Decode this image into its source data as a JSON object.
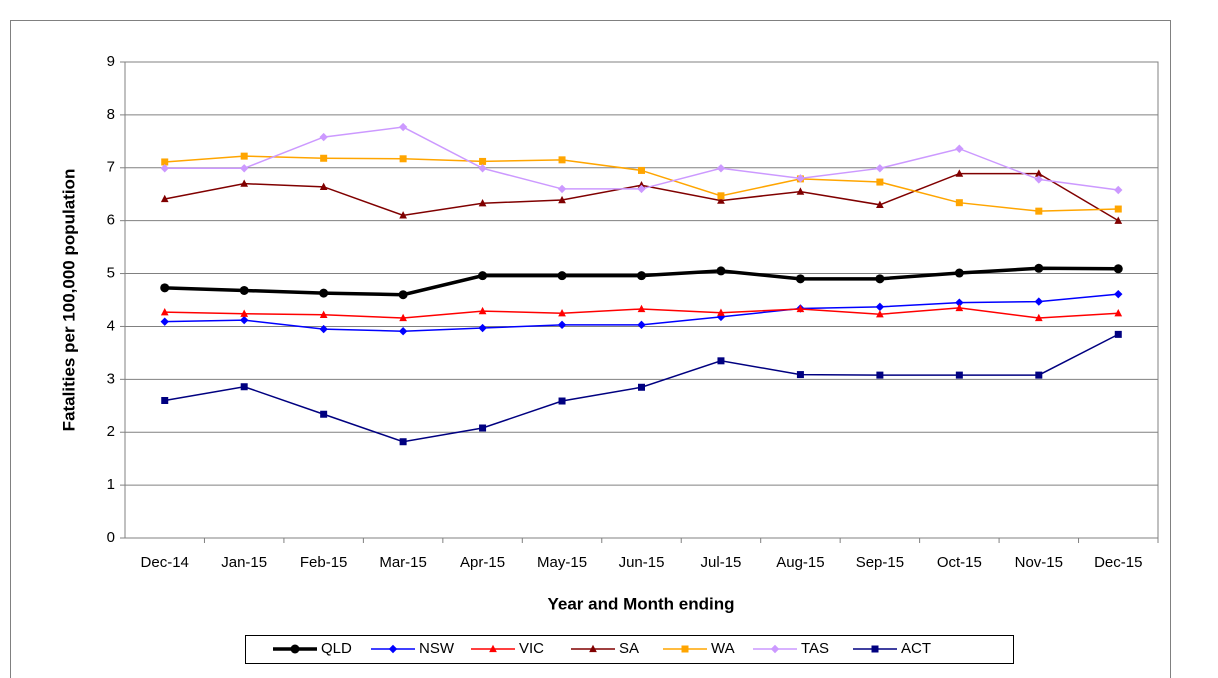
{
  "chart_data": {
    "type": "line",
    "xlabel": "Year and Month ending",
    "ylabel": "Fatalities per 100,000 population",
    "categories": [
      "Dec-14",
      "Jan-15",
      "Feb-15",
      "Mar-15",
      "Apr-15",
      "May-15",
      "Jun-15",
      "Jul-15",
      "Aug-15",
      "Sep-15",
      "Oct-15",
      "Nov-15",
      "Dec-15"
    ],
    "ylim": [
      0,
      9
    ],
    "yticks": [
      0,
      1,
      2,
      3,
      4,
      5,
      6,
      7,
      8,
      9
    ],
    "grid": true,
    "legend": "bottom",
    "series": [
      {
        "name": "QLD",
        "color": "#000000",
        "marker": "circle",
        "values": [
          4.73,
          4.68,
          4.63,
          4.6,
          4.96,
          4.96,
          4.96,
          5.05,
          4.9,
          4.9,
          5.01,
          5.1,
          5.09
        ]
      },
      {
        "name": "NSW",
        "color": "#0000ff",
        "marker": "diamond",
        "values": [
          4.09,
          4.12,
          3.95,
          3.91,
          3.97,
          4.03,
          4.03,
          4.18,
          4.34,
          4.37,
          4.45,
          4.47,
          4.61
        ]
      },
      {
        "name": "VIC",
        "color": "#ff0000",
        "marker": "triangle",
        "values": [
          4.27,
          4.24,
          4.22,
          4.16,
          4.29,
          4.25,
          4.33,
          4.26,
          4.33,
          4.23,
          4.35,
          4.16,
          4.25
        ]
      },
      {
        "name": "SA",
        "color": "#800000",
        "marker": "triangle",
        "values": [
          6.41,
          6.7,
          6.64,
          6.1,
          6.33,
          6.39,
          6.67,
          6.38,
          6.55,
          6.3,
          6.89,
          6.89,
          6.0
        ]
      },
      {
        "name": "WA",
        "color": "#ffa500",
        "marker": "square",
        "values": [
          7.11,
          7.22,
          7.18,
          7.17,
          7.12,
          7.15,
          6.95,
          6.47,
          6.79,
          6.73,
          6.34,
          6.18,
          6.22
        ]
      },
      {
        "name": "TAS",
        "color": "#cc99ff",
        "marker": "diamond",
        "values": [
          6.99,
          6.99,
          7.58,
          7.77,
          6.99,
          6.6,
          6.6,
          6.99,
          6.8,
          6.99,
          7.36,
          6.78,
          6.58
        ]
      },
      {
        "name": "ACT",
        "color": "#000080",
        "marker": "square",
        "values": [
          2.6,
          2.86,
          2.34,
          1.82,
          2.08,
          2.59,
          2.85,
          3.35,
          3.09,
          3.08,
          3.08,
          3.08,
          3.85
        ]
      }
    ]
  }
}
